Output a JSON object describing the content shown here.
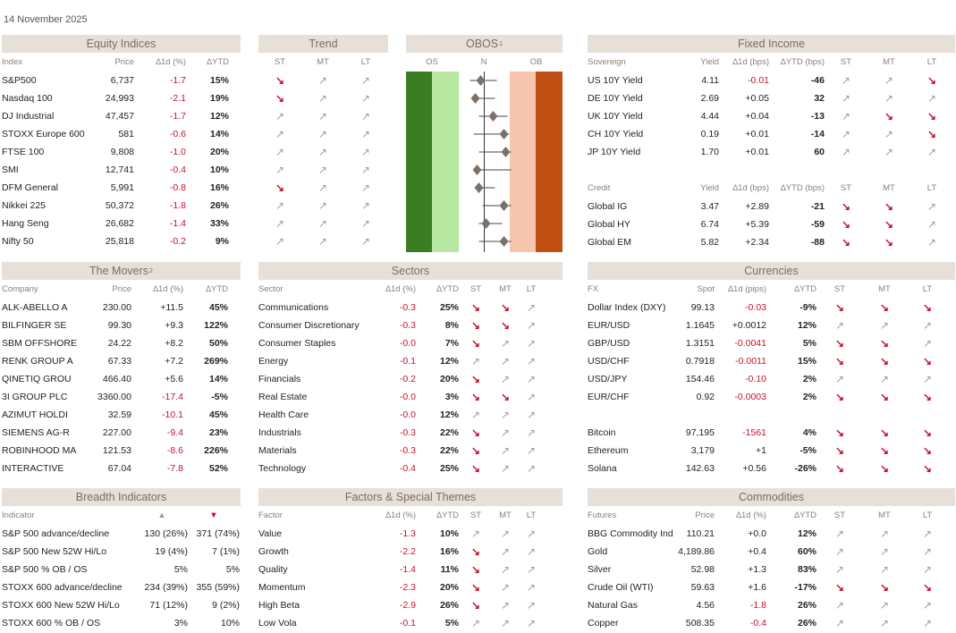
{
  "date": "14 November 2025",
  "colors": {
    "header_bg": "#e6e0d9",
    "negative": "#c8102e",
    "os_dark": "#3a7d22",
    "os_light": "#b6e6a0",
    "ob_light": "#f5c6ad",
    "ob_dark": "#c04f14"
  },
  "equity": {
    "title": "Equity Indices",
    "headers": [
      "Index",
      "Price",
      "∆1d (%)",
      "∆YTD"
    ],
    "rows": [
      {
        "name": "S&P500",
        "price": "6,737",
        "d1": "-1.7",
        "ytd": "15%",
        "neg": true
      },
      {
        "name": "Nasdaq 100",
        "price": "24,993",
        "d1": "-2.1",
        "ytd": "19%",
        "neg": true
      },
      {
        "name": "DJ Industrial",
        "price": "47,457",
        "d1": "-1.7",
        "ytd": "12%",
        "neg": true
      },
      {
        "name": "STOXX Europe 600",
        "price": "581",
        "d1": "-0.6",
        "ytd": "14%",
        "neg": true
      },
      {
        "name": "FTSE 100",
        "price": "9,808",
        "d1": "-1.0",
        "ytd": "20%",
        "neg": true
      },
      {
        "name": "SMI",
        "price": "12,741",
        "d1": "-0.4",
        "ytd": "10%",
        "neg": true
      },
      {
        "name": "DFM General",
        "price": "5,991",
        "d1": "-0.8",
        "ytd": "16%",
        "neg": true
      },
      {
        "name": "Nikkei 225",
        "price": "50,372",
        "d1": "-1.8",
        "ytd": "26%",
        "neg": true
      },
      {
        "name": "Hang Seng",
        "price": "26,682",
        "d1": "-1.4",
        "ytd": "33%",
        "neg": true
      },
      {
        "name": "Nifty 50",
        "price": "25,818",
        "d1": "-0.2",
        "ytd": "9%",
        "neg": true
      }
    ]
  },
  "trend": {
    "title": "Trend",
    "headers": [
      "ST",
      "MT",
      "LT"
    ],
    "rows": [
      [
        "down",
        "up",
        "up"
      ],
      [
        "down",
        "up",
        "up"
      ],
      [
        "up",
        "up",
        "up"
      ],
      [
        "up",
        "up",
        "up"
      ],
      [
        "up",
        "up",
        "up"
      ],
      [
        "up",
        "up",
        "up"
      ],
      [
        "down",
        "up",
        "up"
      ],
      [
        "up",
        "up",
        "up"
      ],
      [
        "up",
        "up",
        "up"
      ],
      [
        "up",
        "up",
        "up"
      ]
    ]
  },
  "obos": {
    "title": "OBOS",
    "footnote": "1",
    "labels": [
      "OS",
      "N",
      "OB"
    ],
    "values": [
      -0.1,
      -0.25,
      0.25,
      0.55,
      0.6,
      -0.2,
      -0.15,
      0.55,
      0.05,
      0.55
    ],
    "ranges": [
      [
        -0.4,
        0.35
      ],
      [
        -0.3,
        0.3
      ],
      [
        -0.15,
        0.65
      ],
      [
        -0.3,
        0.7
      ],
      [
        -0.15,
        0.75
      ],
      [
        -0.15,
        0.75
      ],
      [
        -0.2,
        0.3
      ],
      [
        -0.05,
        0.75
      ],
      [
        -0.15,
        0.5
      ],
      [
        -0.15,
        0.75
      ]
    ]
  },
  "fixed": {
    "title": "Fixed Income",
    "headers": [
      "Sovereign",
      "Yield",
      "∆1d (bps)",
      "∆YTD (bps)",
      "ST",
      "MT",
      "LT"
    ],
    "sovereign": [
      {
        "name": "US 10Y Yield",
        "yield": "4.11",
        "d1": "-0.01",
        "ytd": "-46",
        "neg": true,
        "trend": [
          "up",
          "up",
          "down"
        ]
      },
      {
        "name": "DE 10Y Yield",
        "yield": "2.69",
        "d1": "+0.05",
        "ytd": "32",
        "neg": false,
        "trend": [
          "up",
          "up",
          "up"
        ]
      },
      {
        "name": "UK 10Y Yield",
        "yield": "4.44",
        "d1": "+0.04",
        "ytd": "-13",
        "neg": false,
        "trend": [
          "up",
          "down",
          "down"
        ]
      },
      {
        "name": "CH 10Y Yield",
        "yield": "0.19",
        "d1": "+0.01",
        "ytd": "-14",
        "neg": false,
        "trend": [
          "up",
          "up",
          "down"
        ]
      },
      {
        "name": "JP 10Y Yield",
        "yield": "1.70",
        "d1": "+0.01",
        "ytd": "60",
        "neg": false,
        "trend": [
          "up",
          "up",
          "up"
        ]
      }
    ],
    "credit_headers": [
      "Credit",
      "Yield",
      "∆1d (bps)",
      "∆YTD (bps)",
      "ST",
      "MT",
      "LT"
    ],
    "credit": [
      {
        "name": "Global IG",
        "yield": "3.47",
        "d1": "+2.89",
        "ytd": "-21",
        "neg": false,
        "trend": [
          "down",
          "down",
          "up"
        ]
      },
      {
        "name": "Global HY",
        "yield": "6.74",
        "d1": "+5.39",
        "ytd": "-59",
        "neg": false,
        "trend": [
          "down",
          "down",
          "up"
        ]
      },
      {
        "name": "Global EM",
        "yield": "5.82",
        "d1": "+2.34",
        "ytd": "-88",
        "neg": false,
        "trend": [
          "down",
          "down",
          "up"
        ]
      }
    ]
  },
  "movers": {
    "title": "The Movers",
    "footnote": "2",
    "headers": [
      "Company",
      "Price",
      "∆1d (%)",
      "∆YTD"
    ],
    "rows": [
      {
        "name": "ALK-ABELLO A",
        "price": "230.00",
        "d1": "+11.5",
        "ytd": "45%",
        "neg": false
      },
      {
        "name": "BILFINGER SE",
        "price": "99.30",
        "d1": "+9.3",
        "ytd": "122%",
        "neg": false
      },
      {
        "name": "SBM OFFSHORE",
        "price": "24.22",
        "d1": "+8.2",
        "ytd": "50%",
        "neg": false
      },
      {
        "name": "RENK GROUP A",
        "price": "67.33",
        "d1": "+7.2",
        "ytd": "269%",
        "neg": false
      },
      {
        "name": "QINETIQ GROU",
        "price": "466.40",
        "d1": "+5.6",
        "ytd": "14%",
        "neg": false
      },
      {
        "name": "3I GROUP PLC",
        "price": "3360.00",
        "d1": "-17.4",
        "ytd": "-5%",
        "neg": true
      },
      {
        "name": "AZIMUT HOLDI",
        "price": "32.59",
        "d1": "-10.1",
        "ytd": "45%",
        "neg": true
      },
      {
        "name": "SIEMENS AG-R",
        "price": "227.00",
        "d1": "-9.4",
        "ytd": "23%",
        "neg": true
      },
      {
        "name": "ROBINHOOD MA",
        "price": "121.53",
        "d1": "-8.6",
        "ytd": "226%",
        "neg": true
      },
      {
        "name": "INTERACTIVE",
        "price": "67.04",
        "d1": "-7.8",
        "ytd": "52%",
        "neg": true
      }
    ]
  },
  "sectors": {
    "title": "Sectors",
    "headers": [
      "Sector",
      "∆1d (%)",
      "∆YTD",
      "ST",
      "MT",
      "LT"
    ],
    "rows": [
      {
        "name": "Communications",
        "d1": "-0.3",
        "ytd": "25%",
        "neg": true,
        "trend": [
          "down",
          "down",
          "up"
        ]
      },
      {
        "name": "Consumer Discretionary",
        "d1": "-0.3",
        "ytd": "8%",
        "neg": true,
        "trend": [
          "down",
          "down",
          "up"
        ]
      },
      {
        "name": "Consumer Staples",
        "d1": "-0.0",
        "ytd": "7%",
        "neg": true,
        "trend": [
          "down",
          "up",
          "up"
        ]
      },
      {
        "name": "Energy",
        "d1": "-0.1",
        "ytd": "12%",
        "neg": true,
        "trend": [
          "up",
          "up",
          "up"
        ]
      },
      {
        "name": "Financials",
        "d1": "-0.2",
        "ytd": "20%",
        "neg": true,
        "trend": [
          "down",
          "up",
          "up"
        ]
      },
      {
        "name": "Real Estate",
        "d1": "-0.0",
        "ytd": "3%",
        "neg": true,
        "trend": [
          "down",
          "down",
          "up"
        ]
      },
      {
        "name": "Health Care",
        "d1": "-0.0",
        "ytd": "12%",
        "neg": true,
        "trend": [
          "up",
          "up",
          "up"
        ]
      },
      {
        "name": "Industrials",
        "d1": "-0.3",
        "ytd": "22%",
        "neg": true,
        "trend": [
          "down",
          "up",
          "up"
        ]
      },
      {
        "name": "Materials",
        "d1": "-0.3",
        "ytd": "22%",
        "neg": true,
        "trend": [
          "down",
          "up",
          "up"
        ]
      },
      {
        "name": "Technology",
        "d1": "-0.4",
        "ytd": "25%",
        "neg": true,
        "trend": [
          "down",
          "up",
          "up"
        ]
      }
    ]
  },
  "currencies": {
    "title": "Currencies",
    "headers": [
      "FX",
      "Spot",
      "∆1d (pips)",
      "∆YTD",
      "ST",
      "MT",
      "LT"
    ],
    "rows": [
      {
        "name": "Dollar Index (DXY)",
        "spot": "99.13",
        "d1": "-0.03",
        "ytd": "-9%",
        "neg": true,
        "trend": [
          "down",
          "down",
          "down"
        ]
      },
      {
        "name": "EUR/USD",
        "spot": "1.1645",
        "d1": "+0.0012",
        "ytd": "12%",
        "neg": false,
        "trend": [
          "up",
          "up",
          "up"
        ]
      },
      {
        "name": "GBP/USD",
        "spot": "1.3151",
        "d1": "-0.0041",
        "ytd": "5%",
        "neg": true,
        "trend": [
          "down",
          "down",
          "up"
        ]
      },
      {
        "name": "USD/CHF",
        "spot": "0.7918",
        "d1": "-0.0011",
        "ytd": "15%",
        "neg": true,
        "trend": [
          "down",
          "down",
          "down"
        ]
      },
      {
        "name": "USD/JPY",
        "spot": "154.46",
        "d1": "-0.10",
        "ytd": "2%",
        "neg": true,
        "trend": [
          "up",
          "up",
          "up"
        ]
      },
      {
        "name": "EUR/CHF",
        "spot": "0.92",
        "d1": "-0.0003",
        "ytd": "2%",
        "neg": true,
        "trend": [
          "down",
          "down",
          "down"
        ]
      }
    ],
    "crypto": [
      {
        "name": "Bitcoin",
        "spot": "97,195",
        "d1": "-1561",
        "ytd": "4%",
        "neg": true,
        "trend": [
          "down",
          "down",
          "down"
        ]
      },
      {
        "name": "Ethereum",
        "spot": "3,179",
        "d1": "+1",
        "ytd": "-5%",
        "neg": false,
        "trend": [
          "down",
          "down",
          "down"
        ]
      },
      {
        "name": "Solana",
        "spot": "142.63",
        "d1": "+0.56",
        "ytd": "-26%",
        "neg": false,
        "trend": [
          "down",
          "down",
          "down"
        ]
      }
    ]
  },
  "breadth": {
    "title": "Breadth Indicators",
    "headers": [
      "Indicator",
      "▲",
      "▼"
    ],
    "rows": [
      {
        "name": "S&P 500 advance/decline",
        "up": "130 (26%)",
        "down": "371 (74%)"
      },
      {
        "name": "S&P 500 New 52W Hi/Lo",
        "up": "19 (4%)",
        "down": "7 (1%)"
      },
      {
        "name": "S&P 500 % OB / OS",
        "up": "5%",
        "down": "5%"
      },
      {
        "name": "STOXX 600 advance/decline",
        "up": "234 (39%)",
        "down": "355 (59%)"
      },
      {
        "name": "STOXX 600 New 52W Hi/Lo",
        "up": "71 (12%)",
        "down": "9 (2%)"
      },
      {
        "name": "STOXX 600 % OB / OS",
        "up": "3%",
        "down": "10%"
      }
    ]
  },
  "factors": {
    "title": "Factors & Special Themes",
    "headers": [
      "Factor",
      "∆1d (%)",
      "∆YTD",
      "ST",
      "MT",
      "LT"
    ],
    "rows": [
      {
        "name": "Value",
        "d1": "-1.3",
        "ytd": "10%",
        "neg": true,
        "trend": [
          "up",
          "up",
          "up"
        ]
      },
      {
        "name": "Growth",
        "d1": "-2.2",
        "ytd": "16%",
        "neg": true,
        "trend": [
          "down",
          "up",
          "up"
        ]
      },
      {
        "name": "Quality",
        "d1": "-1.4",
        "ytd": "11%",
        "neg": true,
        "trend": [
          "down",
          "up",
          "up"
        ]
      },
      {
        "name": "Momentum",
        "d1": "-2.3",
        "ytd": "20%",
        "neg": true,
        "trend": [
          "down",
          "up",
          "up"
        ]
      },
      {
        "name": "High Beta",
        "d1": "-2.9",
        "ytd": "26%",
        "neg": true,
        "trend": [
          "down",
          "up",
          "up"
        ]
      },
      {
        "name": "Low Vola",
        "d1": "-0.1",
        "ytd": "5%",
        "neg": true,
        "trend": [
          "up",
          "up",
          "up"
        ]
      }
    ]
  },
  "commodities": {
    "title": "Commodities",
    "headers": [
      "Futures",
      "Price",
      "∆1d (%)",
      "∆YTD",
      "ST",
      "MT",
      "LT"
    ],
    "rows": [
      {
        "name": "BBG Commodity Ind",
        "price": "110.21",
        "d1": "+0.0",
        "ytd": "12%",
        "neg": false,
        "trend": [
          "up",
          "up",
          "up"
        ]
      },
      {
        "name": "Gold",
        "price": "4,189.86",
        "d1": "+0.4",
        "ytd": "60%",
        "neg": false,
        "trend": [
          "up",
          "up",
          "up"
        ]
      },
      {
        "name": "Silver",
        "price": "52.98",
        "d1": "+1.3",
        "ytd": "83%",
        "neg": false,
        "trend": [
          "up",
          "up",
          "up"
        ]
      },
      {
        "name": "Crude Oil (WTI)",
        "price": "59.63",
        "d1": "+1.6",
        "ytd": "-17%",
        "neg": false,
        "trend": [
          "down",
          "down",
          "down"
        ]
      },
      {
        "name": "Natural Gas",
        "price": "4.56",
        "d1": "-1.8",
        "ytd": "26%",
        "neg": true,
        "trend": [
          "up",
          "up",
          "up"
        ]
      },
      {
        "name": "Copper",
        "price": "508.35",
        "d1": "-0.4",
        "ytd": "26%",
        "neg": true,
        "trend": [
          "up",
          "up",
          "up"
        ]
      }
    ]
  }
}
